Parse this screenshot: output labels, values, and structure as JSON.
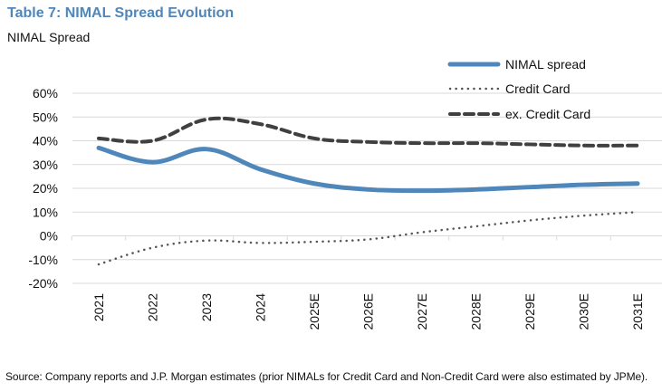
{
  "header": {
    "title": "Table 7: NIMAL Spread Evolution",
    "subtitle": "NIMAL Spread"
  },
  "footer": {
    "source": "Source:  Company reports and J.P. Morgan estimates (prior NIMALs for Credit Card and Non-Credit Card were also estimated by JPMe)."
  },
  "colors": {
    "title": "#4f87bb",
    "nimal": "#4f87bb",
    "credit_card": "#555555",
    "ex_credit_card": "#404040",
    "grid": "#d9d9d9"
  },
  "chart_data": {
    "type": "line",
    "title": "Table 7: NIMAL Spread Evolution",
    "subtitle": "NIMAL Spread",
    "xlabel": "",
    "ylabel": "",
    "categories": [
      "2021",
      "2022",
      "2023",
      "2024",
      "2025E",
      "2026E",
      "2027E",
      "2028E",
      "2029E",
      "2030E",
      "2031E"
    ],
    "ylim": [
      -20,
      60
    ],
    "yticks": [
      -20,
      -10,
      0,
      10,
      20,
      30,
      40,
      50,
      60
    ],
    "ytick_labels": [
      "-20%",
      "-10%",
      "0%",
      "10%",
      "20%",
      "30%",
      "40%",
      "50%",
      "60%"
    ],
    "grid": true,
    "legend_position": "top-right",
    "series": [
      {
        "name": "NIMAL spread",
        "style": "solid",
        "values": [
          37,
          31,
          36.5,
          28,
          22,
          19.5,
          19,
          19.5,
          20.5,
          21.5,
          22
        ]
      },
      {
        "name": "Credit Card",
        "style": "dotted",
        "values": [
          -12,
          -5,
          -2,
          -3,
          -2.5,
          -1.5,
          1.5,
          4,
          6.5,
          8.5,
          10
        ]
      },
      {
        "name": "ex. Credit Card",
        "style": "dashed",
        "values": [
          41,
          40,
          49,
          47,
          41,
          39.5,
          39,
          39,
          38.5,
          38,
          38
        ]
      }
    ]
  }
}
